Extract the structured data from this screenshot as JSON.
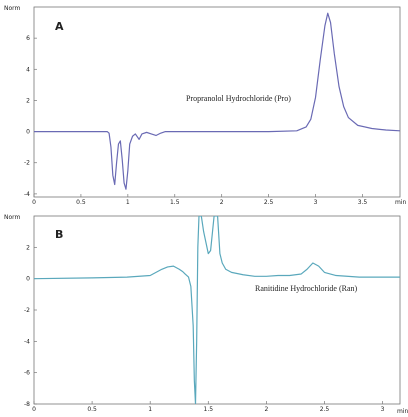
{
  "chart_data": [
    {
      "type": "line",
      "panel_label": "A",
      "ylabel": "Norm",
      "xlabel": "min",
      "annotation": "Propranolol Hydrochloride (Pro)",
      "xlim": [
        0,
        3.9
      ],
      "ylim": [
        -4.2,
        8.0
      ],
      "xticks": [
        0,
        0.5,
        1,
        1.5,
        2,
        2.5,
        3,
        3.5
      ],
      "yticks": [
        -4,
        -2,
        0,
        2,
        4,
        6
      ],
      "line_color": "#6a6ab4",
      "points": [
        [
          0.0,
          0.0
        ],
        [
          0.5,
          0.0
        ],
        [
          0.78,
          0.0
        ],
        [
          0.8,
          -0.1
        ],
        [
          0.82,
          -1.0
        ],
        [
          0.84,
          -2.8
        ],
        [
          0.86,
          -3.4
        ],
        [
          0.88,
          -2.0
        ],
        [
          0.9,
          -0.8
        ],
        [
          0.92,
          -0.6
        ],
        [
          0.94,
          -1.8
        ],
        [
          0.96,
          -3.3
        ],
        [
          0.98,
          -3.7
        ],
        [
          1.0,
          -2.5
        ],
        [
          1.02,
          -0.8
        ],
        [
          1.05,
          -0.3
        ],
        [
          1.08,
          -0.15
        ],
        [
          1.12,
          -0.5
        ],
        [
          1.15,
          -0.15
        ],
        [
          1.2,
          -0.05
        ],
        [
          1.25,
          -0.15
        ],
        [
          1.3,
          -0.25
        ],
        [
          1.35,
          -0.1
        ],
        [
          1.4,
          0.0
        ],
        [
          2.0,
          0.0
        ],
        [
          2.5,
          0.0
        ],
        [
          2.8,
          0.05
        ],
        [
          2.9,
          0.3
        ],
        [
          2.95,
          0.8
        ],
        [
          3.0,
          2.2
        ],
        [
          3.05,
          4.6
        ],
        [
          3.1,
          6.8
        ],
        [
          3.13,
          7.6
        ],
        [
          3.16,
          7.0
        ],
        [
          3.2,
          5.0
        ],
        [
          3.25,
          2.9
        ],
        [
          3.3,
          1.6
        ],
        [
          3.35,
          0.9
        ],
        [
          3.45,
          0.4
        ],
        [
          3.6,
          0.2
        ],
        [
          3.75,
          0.1
        ],
        [
          3.9,
          0.05
        ]
      ]
    },
    {
      "type": "line",
      "panel_label": "B",
      "ylabel": "Norm",
      "xlabel": "min",
      "annotation": "Ranitidine Hydrochloride (Ran)",
      "xlim": [
        0,
        3.15
      ],
      "ylim": [
        -8.0,
        4.0
      ],
      "xticks": [
        0,
        0.5,
        1,
        1.5,
        2,
        2.5,
        3
      ],
      "yticks": [
        -8,
        -6,
        -4,
        -2,
        0,
        2
      ],
      "line_color": "#5aa8bc",
      "points": [
        [
          0.0,
          0.0
        ],
        [
          0.5,
          0.05
        ],
        [
          0.8,
          0.1
        ],
        [
          1.0,
          0.2
        ],
        [
          1.05,
          0.4
        ],
        [
          1.1,
          0.6
        ],
        [
          1.15,
          0.75
        ],
        [
          1.2,
          0.8
        ],
        [
          1.25,
          0.6
        ],
        [
          1.28,
          0.45
        ],
        [
          1.3,
          0.3
        ],
        [
          1.33,
          0.1
        ],
        [
          1.35,
          -0.5
        ],
        [
          1.37,
          -3.0
        ],
        [
          1.38,
          -6.5
        ],
        [
          1.39,
          -8.0
        ],
        [
          1.4,
          -4.0
        ],
        [
          1.41,
          2.0
        ],
        [
          1.42,
          4.0
        ],
        [
          1.44,
          4.0
        ],
        [
          1.46,
          3.0
        ],
        [
          1.5,
          1.6
        ],
        [
          1.52,
          1.8
        ],
        [
          1.55,
          4.0
        ],
        [
          1.58,
          4.0
        ],
        [
          1.6,
          1.6
        ],
        [
          1.62,
          1.0
        ],
        [
          1.65,
          0.6
        ],
        [
          1.7,
          0.4
        ],
        [
          1.8,
          0.25
        ],
        [
          1.9,
          0.15
        ],
        [
          2.0,
          0.15
        ],
        [
          2.1,
          0.2
        ],
        [
          2.2,
          0.2
        ],
        [
          2.3,
          0.3
        ],
        [
          2.35,
          0.6
        ],
        [
          2.4,
          1.0
        ],
        [
          2.45,
          0.8
        ],
        [
          2.5,
          0.4
        ],
        [
          2.6,
          0.2
        ],
        [
          2.8,
          0.1
        ],
        [
          3.15,
          0.1
        ]
      ]
    }
  ]
}
